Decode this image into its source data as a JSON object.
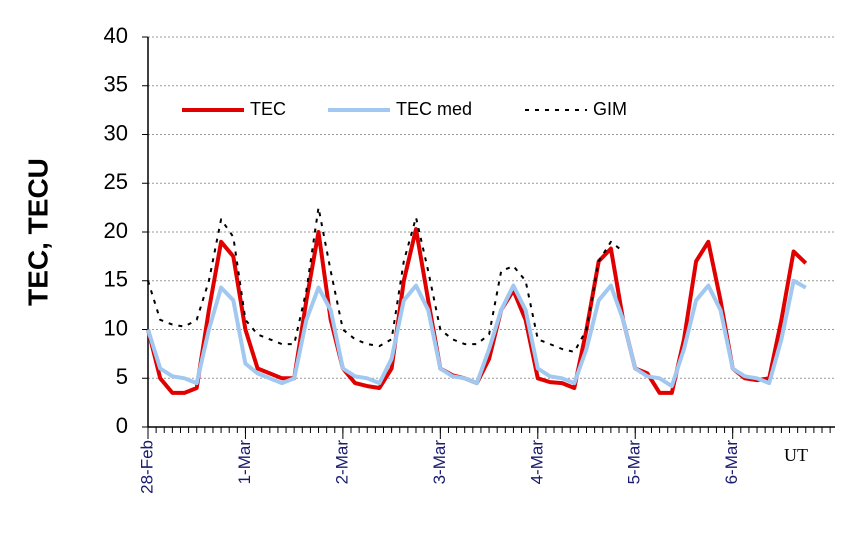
{
  "chart_data": {
    "type": "line",
    "ylabel": "TEC, TECU",
    "xlabel": "UT",
    "xlim": [
      0,
      7.05
    ],
    "ylim": [
      0,
      40
    ],
    "yticks": [
      0,
      5,
      10,
      15,
      20,
      25,
      30,
      35,
      40
    ],
    "xticks": [
      {
        "value": 0,
        "label": "28-Feb"
      },
      {
        "value": 1,
        "label": "1-Mar"
      },
      {
        "value": 2,
        "label": "2-Mar"
      },
      {
        "value": 3,
        "label": "3-Mar"
      },
      {
        "value": 4,
        "label": "4-Mar"
      },
      {
        "value": 5,
        "label": "5-Mar"
      },
      {
        "value": 6,
        "label": "6-Mar"
      }
    ],
    "grid": true,
    "legend": "upper-left",
    "x": [
      0,
      0.125,
      0.25,
      0.375,
      0.5,
      0.625,
      0.75,
      0.875,
      1,
      1.125,
      1.25,
      1.375,
      1.5,
      1.625,
      1.75,
      1.875,
      2,
      2.125,
      2.25,
      2.375,
      2.5,
      2.625,
      2.75,
      2.875,
      3,
      3.125,
      3.25,
      3.375,
      3.5,
      3.625,
      3.75,
      3.875,
      4,
      4.125,
      4.25,
      4.375,
      4.5,
      4.625,
      4.75,
      4.875,
      5,
      5.125,
      5.25,
      5.375,
      5.5,
      5.625,
      5.75,
      5.875,
      6,
      6.125,
      6.25,
      6.375,
      6.5,
      6.625,
      6.75
    ],
    "series": [
      {
        "name": "TEC",
        "color": "#e00000",
        "width": 4,
        "dash": "none",
        "values": [
          10,
          5,
          3.5,
          3.5,
          4,
          12,
          19,
          17.5,
          10,
          6,
          5.5,
          5,
          5,
          13,
          20,
          11,
          6,
          4.5,
          4.2,
          4,
          6,
          15,
          20.3,
          13,
          6,
          5.3,
          5,
          4.5,
          7,
          12,
          14,
          11,
          5,
          4.6,
          4.5,
          4,
          10,
          17,
          18.3,
          11,
          6,
          5.5,
          3.5,
          3.5,
          9,
          17,
          19,
          13,
          6,
          5,
          4.8,
          5,
          11,
          18,
          16.8
        ]
      },
      {
        "name": "TEC med",
        "color": "#a0c8f0",
        "width": 4,
        "dash": "none",
        "values": [
          10,
          6,
          5.2,
          5,
          4.5,
          10,
          14.3,
          13,
          6.5,
          5.5,
          5,
          4.5,
          5,
          11,
          14.3,
          12,
          6,
          5.2,
          5,
          4.5,
          7,
          13,
          14.5,
          12,
          6,
          5.2,
          5,
          4.5,
          8,
          12,
          14.5,
          12,
          6,
          5.2,
          5,
          4.5,
          8,
          13,
          14.5,
          11,
          6,
          5.2,
          5,
          4.2,
          8,
          13,
          14.5,
          12,
          6,
          5.2,
          5,
          4.5,
          9,
          15,
          14.3
        ]
      },
      {
        "name": "GIM",
        "color": "#000000",
        "width": 2,
        "dash": "4,6",
        "values": [
          15,
          11,
          10.5,
          10.3,
          11,
          15,
          21.3,
          19.5,
          11,
          9.5,
          9,
          8.5,
          8.5,
          14,
          22.5,
          16,
          10,
          9,
          8.5,
          8.3,
          9,
          17,
          21.5,
          16,
          10,
          9,
          8.5,
          8.5,
          9.5,
          16,
          16.5,
          15,
          9,
          8.5,
          8,
          7.7,
          10,
          17,
          19,
          18,
          null,
          null,
          null,
          null,
          null,
          null,
          null,
          null,
          null,
          null,
          null,
          null,
          null,
          null,
          null
        ]
      }
    ]
  }
}
